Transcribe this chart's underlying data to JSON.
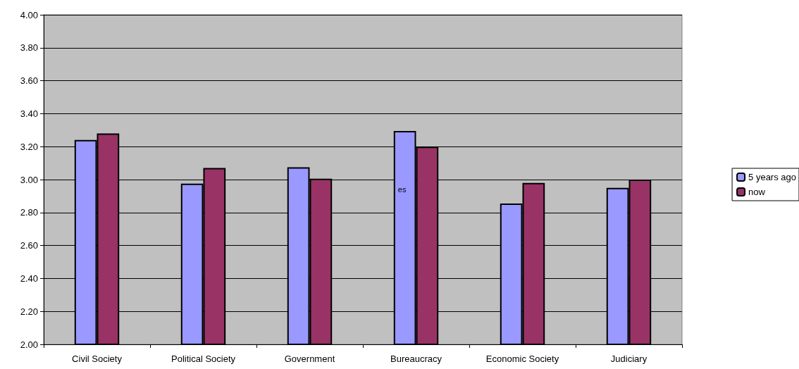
{
  "chart_data": {
    "type": "bar",
    "categories": [
      "Civil Society",
      "Political Society",
      "Government",
      "Bureaucracy",
      "Economic Society",
      "Judiciary"
    ],
    "series": [
      {
        "name": "5 years ago",
        "color": "#9999ff",
        "values": [
          3.24,
          2.975,
          3.075,
          3.295,
          2.855,
          2.95
        ]
      },
      {
        "name": "now",
        "color": "#993366",
        "values": [
          3.28,
          3.07,
          3.005,
          3.2,
          2.98,
          3.0
        ]
      }
    ],
    "ylim": [
      2,
      4
    ],
    "yticks": [
      {
        "value": 2,
        "label": "2.00"
      },
      {
        "value": 2.2,
        "label": "2.20"
      },
      {
        "value": 2.4,
        "label": "2.40"
      },
      {
        "value": 2.6,
        "label": "2.60"
      },
      {
        "value": 2.8,
        "label": "2.80"
      },
      {
        "value": 3,
        "label": "3.00"
      },
      {
        "value": 3.2,
        "label": "3.20"
      },
      {
        "value": 3.4,
        "label": "3.40"
      },
      {
        "value": 3.6,
        "label": "3.60"
      },
      {
        "value": 3.8,
        "label": "3.80"
      },
      {
        "value": 4,
        "label": "4.00"
      }
    ],
    "grid": "y",
    "legend": "right",
    "annotations": [
      {
        "text": "es",
        "x": "Bureaucracy",
        "y": 2.94
      }
    ]
  }
}
